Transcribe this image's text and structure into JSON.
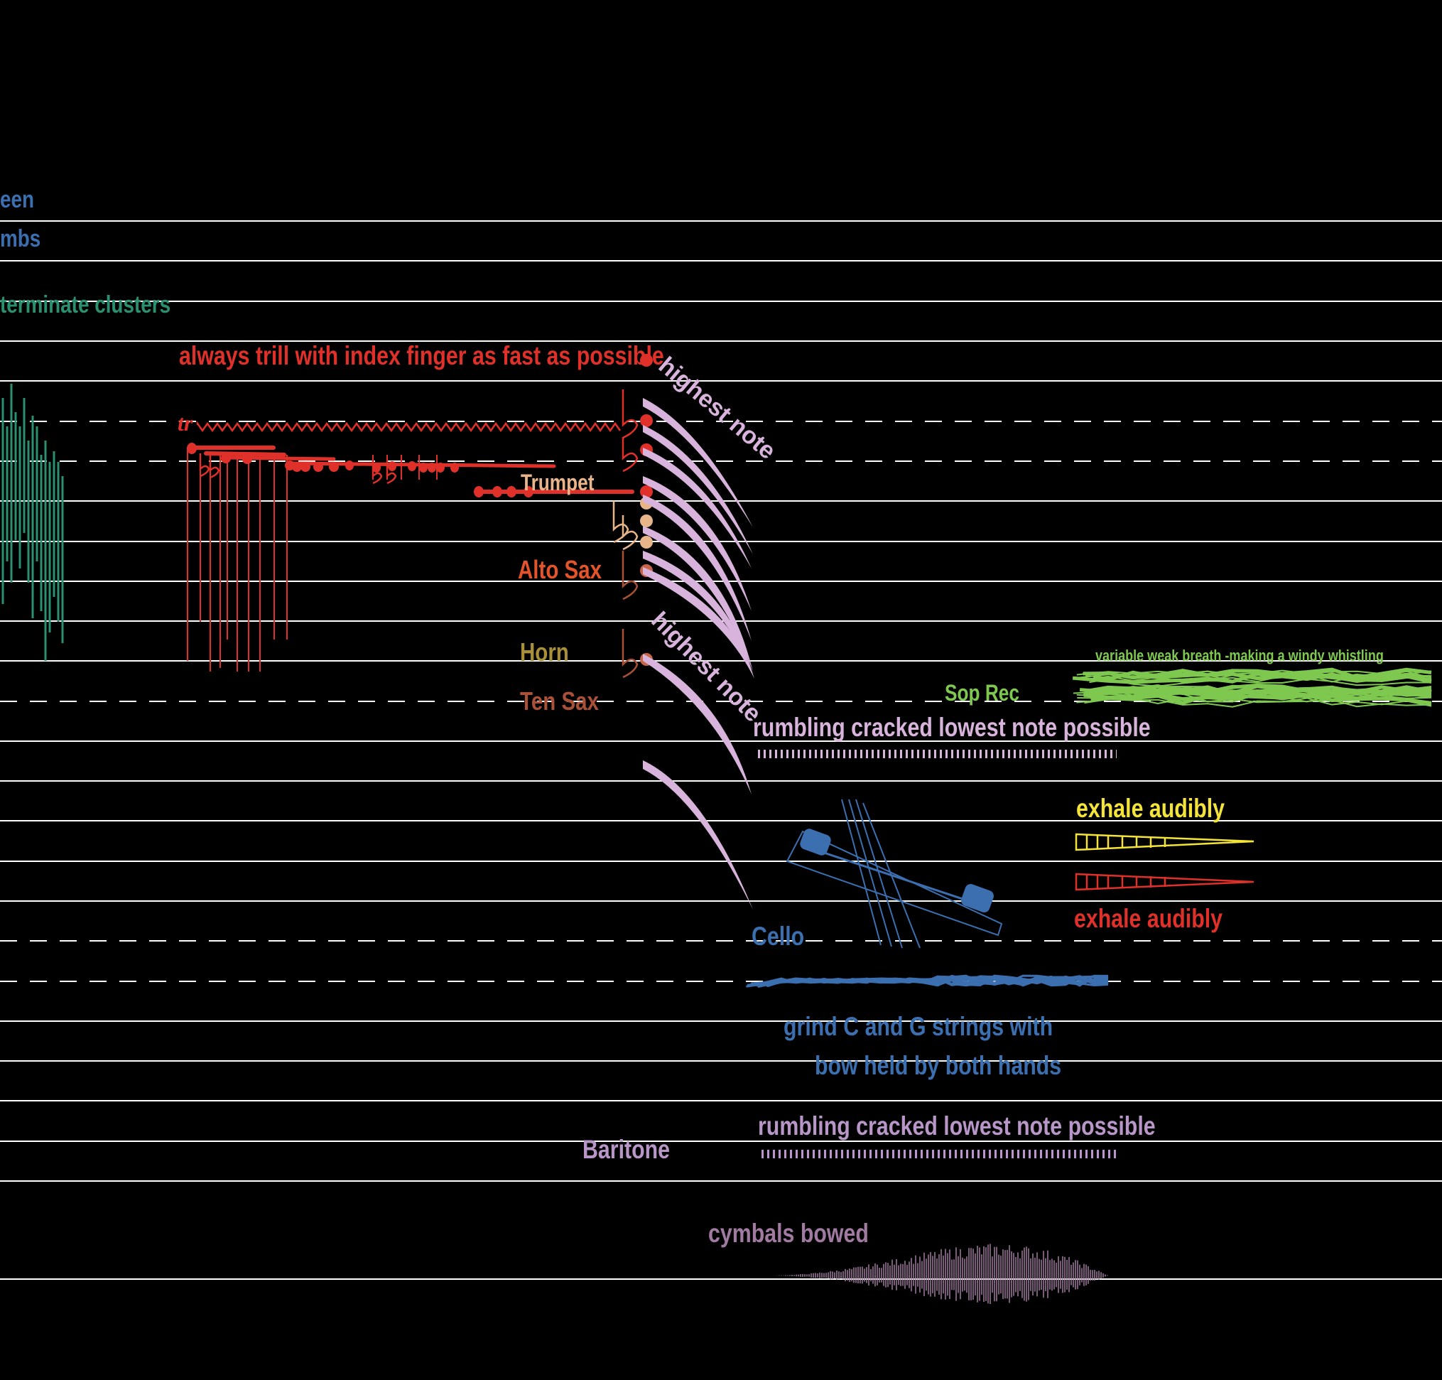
{
  "colors": {
    "background": "#000000",
    "staff_line": "#ffffff",
    "blue": "#3b6fb0",
    "teal": "#2a9070",
    "red": "#e0302a",
    "lilac": "#d8b4dc",
    "trumpet": "#e8b48a",
    "alto_sax": "#e4542a",
    "horn": "#a89038",
    "ten_sax": "#a85038",
    "green": "#7ec850",
    "yellow": "#f4e43a",
    "baritone": "#b896c8",
    "cymbal": "#a07aa0"
  },
  "labels": {
    "top_fragment_1": "een",
    "top_fragment_2": "mbs",
    "clusters": "terminate clusters",
    "trill_instruction": "always trill with index finger as fast as possible",
    "trill_mark": "tr",
    "highest_note_1": "highest note",
    "highest_note_2": "highest note",
    "trumpet": "Trumpet",
    "alto_sax": "Alto Sax",
    "horn": "Horn",
    "ten_sax": "Ten Sax",
    "rec_label": "Sop Rec",
    "breath_instruction": "variable weak breath -making a windy whistling",
    "rumbling_1": "rumbling cracked lowest note possible",
    "exhale_1": "exhale audibly",
    "exhale_2": "exhale audibly",
    "cello": "Cello",
    "grind_1": "grind C and G strings with",
    "grind_2": "bow held by both hands",
    "rumbling_2": "rumbling cracked  lowest note possible",
    "baritone": "Baritone",
    "cymbals": "cymbals bowed"
  }
}
